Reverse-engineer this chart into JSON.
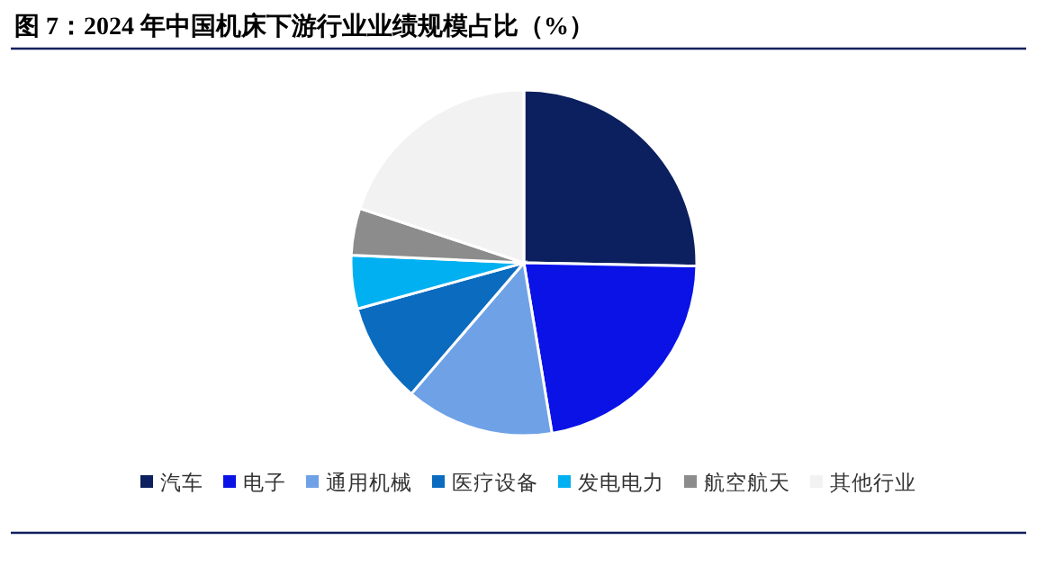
{
  "chart_data": {
    "type": "pie",
    "title": "图 7：2024 年中国机床下游行业业绩规模占比（%）",
    "categories": [
      "汽车",
      "电子",
      "通用机械",
      "医疗设备",
      "发电电力",
      "航空航天",
      "其他行业"
    ],
    "values": [
      25.3,
      22.1,
      13.9,
      9.4,
      5.0,
      4.4,
      19.9
    ],
    "colors": [
      "#0c1f5e",
      "#0a12e6",
      "#6fa1e6",
      "#0b6bbf",
      "#00b0f0",
      "#8c8c8c",
      "#f2f2f2"
    ],
    "legend": "bottom"
  }
}
